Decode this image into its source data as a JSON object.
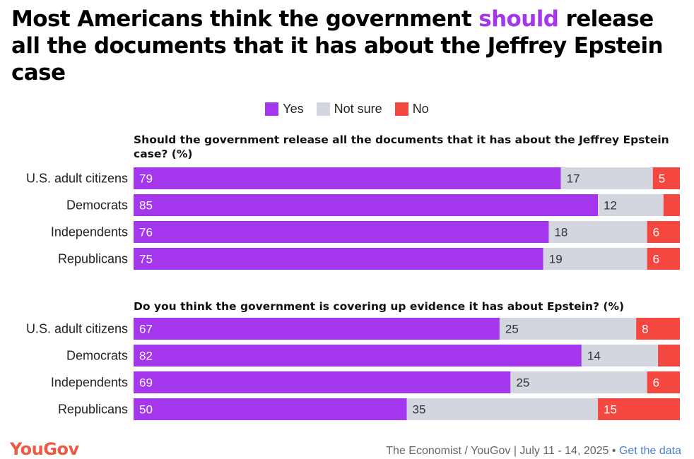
{
  "title": {
    "before": "Most Americans think the government ",
    "highlight": "should",
    "after": " release all the documents that it has about the Jeffrey Epstein case"
  },
  "colors": {
    "yes": "#a436ee",
    "not_sure": "#d4d6df",
    "no": "#f3473f"
  },
  "legend": [
    "Yes",
    "Not sure",
    "No"
  ],
  "chart_data": [
    {
      "type": "bar",
      "stacked": true,
      "orientation": "horizontal",
      "title": "Should the government release all the documents that it has about the Jeffrey Epstein case? (%)",
      "categories": [
        "U.S. adult citizens",
        "Democrats",
        "Independents",
        "Republicans"
      ],
      "series": [
        {
          "name": "Yes",
          "values": [
            79,
            85,
            76,
            75
          ]
        },
        {
          "name": "Not sure",
          "values": [
            17,
            12,
            18,
            19
          ]
        },
        {
          "name": "No",
          "values": [
            5,
            3,
            6,
            6
          ]
        }
      ],
      "labels": {
        "Yes": [
          "79",
          "85",
          "76",
          "75"
        ],
        "Not sure": [
          "17",
          "12",
          "18",
          "19"
        ],
        "No": [
          "5",
          "",
          "6",
          "6"
        ]
      }
    },
    {
      "type": "bar",
      "stacked": true,
      "orientation": "horizontal",
      "title": "Do you think the government is covering up evidence it has about Epstein? (%)",
      "categories": [
        "U.S. adult citizens",
        "Democrats",
        "Independents",
        "Republicans"
      ],
      "series": [
        {
          "name": "Yes",
          "values": [
            67,
            82,
            69,
            50
          ]
        },
        {
          "name": "Not sure",
          "values": [
            25,
            14,
            25,
            35
          ]
        },
        {
          "name": "No",
          "values": [
            8,
            4,
            6,
            15
          ]
        }
      ],
      "labels": {
        "Yes": [
          "67",
          "82",
          "69",
          "50"
        ],
        "Not sure": [
          "25",
          "14",
          "25",
          "35"
        ],
        "No": [
          "8",
          "",
          "6",
          "15"
        ]
      }
    }
  ],
  "footer": {
    "logo": "YouGov",
    "source": "The Economist / YouGov | July 11 - 14, 2025 • ",
    "link": "Get the data"
  }
}
